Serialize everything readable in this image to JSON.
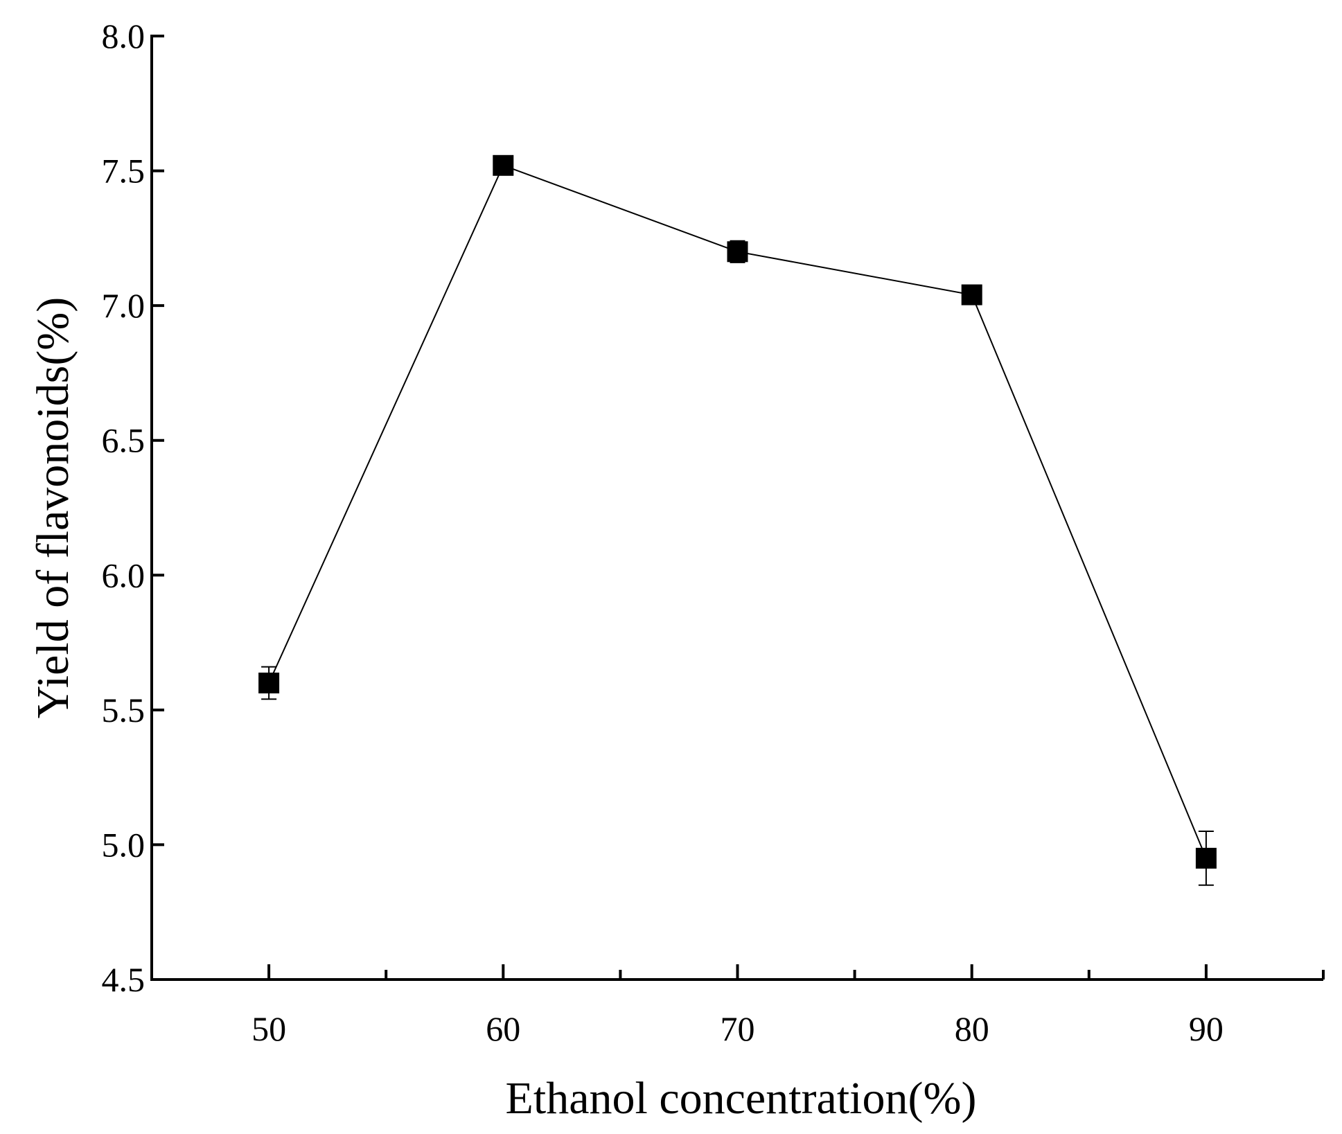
{
  "chart_data": {
    "type": "line",
    "title": "",
    "xlabel": "Ethanol concentration(%)",
    "ylabel": "Yield of flavonoids(%)",
    "x": [
      50,
      60,
      70,
      80,
      90
    ],
    "xlim": [
      45,
      95
    ],
    "ylim": [
      4.5,
      8.0
    ],
    "x_ticks": [
      50,
      60,
      70,
      80,
      90
    ],
    "x_tick_labels": [
      "50",
      "60",
      "70",
      "80",
      "90"
    ],
    "x_minor_ticks": [
      55,
      65,
      75,
      85,
      95
    ],
    "y_ticks": [
      4.5,
      5.0,
      5.5,
      6.0,
      6.5,
      7.0,
      7.5,
      8.0
    ],
    "y_tick_labels": [
      "4.5",
      "5.0",
      "5.5",
      "6.0",
      "6.5",
      "7.0",
      "7.5",
      "8.0"
    ],
    "grid": false,
    "legend": "none",
    "series": [
      {
        "values": [
          5.6,
          7.52,
          7.2,
          7.04,
          4.95
        ],
        "errors": [
          0.06,
          0.02,
          0.04,
          0.02,
          0.1
        ],
        "marker": "square",
        "color": "#000000"
      }
    ]
  }
}
